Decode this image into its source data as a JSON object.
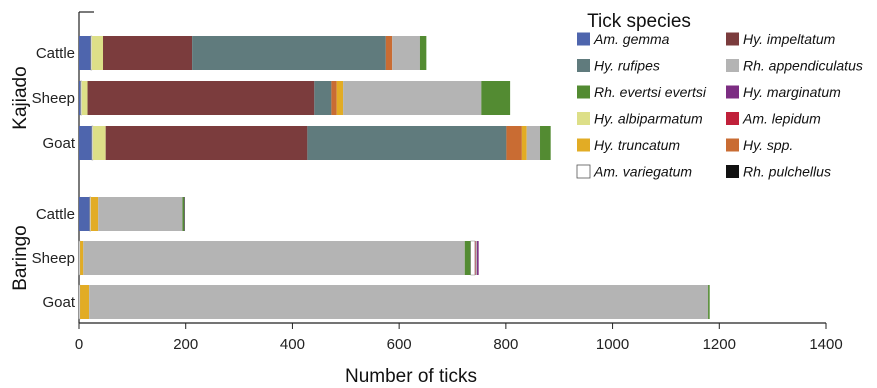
{
  "chart_data": {
    "type": "bar",
    "orientation": "horizontal",
    "stacked": true,
    "xlabel": "Number of ticks",
    "xlim": [
      0,
      1400
    ],
    "xticks": [
      0,
      200,
      400,
      600,
      800,
      1000,
      1200,
      1400
    ],
    "grid": false,
    "legend_title": "Tick species",
    "legend_position": "top-right",
    "groups": [
      {
        "name": "Kajiado",
        "rows": [
          {
            "label": "Cattle",
            "segments": [
              {
                "species": "Am. gemma",
                "value": 22
              },
              {
                "species": "Am. variegatum",
                "value": 2
              },
              {
                "species": "Hy. albiparmatum",
                "value": 21
              },
              {
                "species": "Hy. impeltatum",
                "value": 167
              },
              {
                "species": "Hy. rufipes",
                "value": 363
              },
              {
                "species": "Hy. spp.",
                "value": 12
              },
              {
                "species": "Rh. appendiculatus",
                "value": 52
              },
              {
                "species": "Rh. evertsi evertsi",
                "value": 12
              }
            ]
          },
          {
            "label": "Sheep",
            "segments": [
              {
                "species": "Am. gemma",
                "value": 3
              },
              {
                "species": "Am. variegatum",
                "value": 2
              },
              {
                "species": "Hy. albiparmatum",
                "value": 11
              },
              {
                "species": "Hy. impeltatum",
                "value": 425
              },
              {
                "species": "Hy. rufipes",
                "value": 32
              },
              {
                "species": "Hy. spp.",
                "value": 10
              },
              {
                "species": "Hy. truncatum",
                "value": 12
              },
              {
                "species": "Rh. appendiculatus",
                "value": 259
              },
              {
                "species": "Rh. evertsi evertsi",
                "value": 54
              }
            ]
          },
          {
            "label": "Goat",
            "segments": [
              {
                "species": "Am. gemma",
                "value": 24
              },
              {
                "species": "Am. variegatum",
                "value": 2
              },
              {
                "species": "Hy. albiparmatum",
                "value": 24
              },
              {
                "species": "Hy. impeltatum",
                "value": 378
              },
              {
                "species": "Hy. rufipes",
                "value": 373
              },
              {
                "species": "Hy. spp.",
                "value": 29
              },
              {
                "species": "Hy. truncatum",
                "value": 9
              },
              {
                "species": "Rh. appendiculatus",
                "value": 25
              },
              {
                "species": "Rh. evertsi evertsi",
                "value": 20
              }
            ]
          }
        ]
      },
      {
        "name": "Baringo",
        "rows": [
          {
            "label": "Cattle",
            "segments": [
              {
                "species": "Am. gemma",
                "value": 20
              },
              {
                "species": "Am. variegatum",
                "value": 2
              },
              {
                "species": "Hy. truncatum",
                "value": 14
              },
              {
                "species": "Rh. appendiculatus",
                "value": 158
              },
              {
                "species": "Rh. evertsi evertsi",
                "value": 3
              },
              {
                "species": "Rh. pulchellus",
                "value": 1
              }
            ]
          },
          {
            "label": "Sheep",
            "segments": [
              {
                "species": "Am. variegatum",
                "value": 2
              },
              {
                "species": "Hy. truncatum",
                "value": 6
              },
              {
                "species": "Rh. appendiculatus",
                "value": 715
              },
              {
                "species": "Rh. evertsi evertsi",
                "value": 11
              },
              {
                "species": "Am. variegatum",
                "value": 8
              },
              {
                "species": "Am. lepidum",
                "value": 1
              },
              {
                "species": "Rh. appendiculatus",
                "value": 3
              },
              {
                "species": "Hy. marginatum",
                "value": 3
              }
            ]
          },
          {
            "label": "Goat",
            "segments": [
              {
                "species": "Am. variegatum",
                "value": 2
              },
              {
                "species": "Hy. truncatum",
                "value": 17
              },
              {
                "species": "Rh. appendiculatus",
                "value": 1160
              },
              {
                "species": "Rh. evertsi evertsi",
                "value": 3
              }
            ]
          }
        ]
      }
    ],
    "legend": [
      {
        "name": "Am. gemma",
        "color": "#4e65ad"
      },
      {
        "name": "Hy. impeltatum",
        "color": "#7b3c3d"
      },
      {
        "name": "Hy. rufipes",
        "color": "#607b7d"
      },
      {
        "name": "Rh. appendiculatus",
        "color": "#b4b4b4"
      },
      {
        "name": "Rh. evertsi evertsi",
        "color": "#538b32"
      },
      {
        "name": "Hy. marginatum",
        "color": "#7c2d82"
      },
      {
        "name": "Hy. albiparmatum",
        "color": "#dddf88"
      },
      {
        "name": "Am. lepidum",
        "color": "#c0203a"
      },
      {
        "name": "Hy. truncatum",
        "color": "#e2ac25"
      },
      {
        "name": "Hy. spp.",
        "color": "#c96c33"
      },
      {
        "name": "Am. variegatum",
        "color": "#ffffff"
      },
      {
        "name": "Rh. pulchellus",
        "color": "#111111"
      }
    ]
  }
}
